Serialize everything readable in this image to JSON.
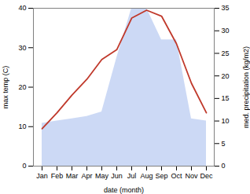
{
  "chart_data": {
    "type": "line",
    "xlabel": "date (month)",
    "ylabel": "max temp (C)",
    "y2label": "med. precipitation (kg/m2)",
    "categories": [
      "Jan",
      "Feb",
      "Mar",
      "Apr",
      "May",
      "Jun",
      "Jul",
      "Aug",
      "Sep",
      "Oct",
      "Nov",
      "Dec"
    ],
    "series": [
      {
        "type": "area",
        "axis": "y2",
        "color": "#b0c4f0",
        "values": [
          9.5,
          10.0,
          10.5,
          11.0,
          12.0,
          24.0,
          35.0,
          35.0,
          28.0,
          28.0,
          10.5,
          10.0
        ]
      },
      {
        "type": "line",
        "color": "#c0392b",
        "values": [
          9.5,
          13.5,
          18.0,
          22.0,
          27.0,
          29.5,
          37.5,
          39.5,
          38.0,
          31.0,
          21.0,
          13.5
        ]
      }
    ],
    "ylim": [
      0,
      40
    ],
    "yticks": [
      0,
      10,
      20,
      30,
      40
    ],
    "y2lim": [
      0,
      35
    ],
    "y2ticks": [
      0,
      5,
      10,
      15,
      20,
      25,
      30,
      35
    ],
    "grid": false
  }
}
